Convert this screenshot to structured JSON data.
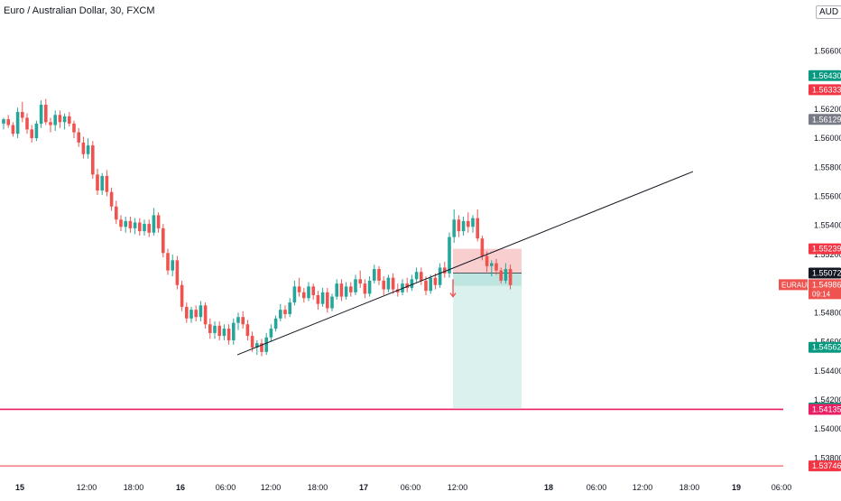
{
  "header": {
    "title": "Euro / Australian Dollar, 30, FXCM",
    "currency": "AUD"
  },
  "colors": {
    "up": "#26a69a",
    "down": "#ef5350",
    "trendline": "#131722",
    "risk_zone": "#f7c5c5",
    "reward_zone": "#d9f0ec",
    "hline": "#e91e63"
  },
  "chart_data": {
    "type": "candlestick",
    "title": "Euro / Australian Dollar, 30, FXCM",
    "ylim": [
      1.5366,
      1.5695
    ],
    "y_ticks": [
      "1.56600",
      "1.56200",
      "1.56000",
      "1.55800",
      "1.55600",
      "1.55400",
      "1.55200",
      "1.54800",
      "1.54600",
      "1.54400",
      "1.54200",
      "1.54000",
      "1.53800"
    ],
    "x_ticks": [
      "15",
      "12:00",
      "18:00",
      "16",
      "06:00",
      "12:00",
      "18:00",
      "17",
      "06:00",
      "12:00",
      "18",
      "06:00",
      "12:00",
      "18:00",
      "19",
      "06:00"
    ],
    "price_labels": [
      {
        "text": "1.56430",
        "value": 1.5643,
        "color": "#089981"
      },
      {
        "text": "1.56333",
        "value": 1.56333,
        "color": "#f23645"
      },
      {
        "text": "1.56129",
        "value": 1.56129,
        "color": "#787b86"
      },
      {
        "text": "1.55239",
        "value": 1.55239,
        "color": "#f23645"
      },
      {
        "text": "1.55072",
        "value": 1.55072,
        "color": "#131722"
      },
      {
        "text": "1.54562",
        "value": 1.54562,
        "color": "#089981"
      },
      {
        "text": "1.54144",
        "value": 1.54144,
        "color": "#089981"
      },
      {
        "text": "1.54135",
        "value": 1.54135,
        "color": "#e91e63"
      },
      {
        "text": "1.53746",
        "value": 1.53746,
        "color": "#f23645"
      }
    ],
    "current_price": {
      "symbol": "EURAUD",
      "price": "1.54986",
      "countdown": "09:14",
      "value": 1.54986
    },
    "hlines": [
      1.54135,
      1.53746
    ],
    "trendline": {
      "start": {
        "bar": 0.0,
        "price": 1.5451
      },
      "end": {
        "bar": 0.0,
        "price": 1.5577
      }
    },
    "position": {
      "type": "short",
      "entry": 1.55072,
      "stop": 1.55239,
      "target": 1.54144
    },
    "candles": [
      [
        1.561,
        1.5614,
        1.5606,
        1.5613
      ],
      [
        1.5613,
        1.5616,
        1.5607,
        1.5609
      ],
      [
        1.5609,
        1.5611,
        1.5601,
        1.5603
      ],
      [
        1.5603,
        1.5621,
        1.56,
        1.5618
      ],
      [
        1.5618,
        1.5625,
        1.5611,
        1.5614
      ],
      [
        1.5614,
        1.5617,
        1.5603,
        1.5606
      ],
      [
        1.5606,
        1.5609,
        1.5597,
        1.56
      ],
      [
        1.56,
        1.5612,
        1.5598,
        1.561
      ],
      [
        1.561,
        1.5626,
        1.5607,
        1.5623
      ],
      [
        1.5623,
        1.5627,
        1.5609,
        1.5611
      ],
      [
        1.5611,
        1.5614,
        1.5604,
        1.5609
      ],
      [
        1.5609,
        1.5619,
        1.5605,
        1.5616
      ],
      [
        1.5616,
        1.5619,
        1.5607,
        1.5611
      ],
      [
        1.5611,
        1.5617,
        1.5606,
        1.5615
      ],
      [
        1.5615,
        1.5618,
        1.5608,
        1.561
      ],
      [
        1.561,
        1.5612,
        1.56,
        1.5604
      ],
      [
        1.5604,
        1.5607,
        1.5594,
        1.5597
      ],
      [
        1.5597,
        1.5601,
        1.5586,
        1.5589
      ],
      [
        1.5589,
        1.56,
        1.5586,
        1.5595
      ],
      [
        1.5595,
        1.5598,
        1.5572,
        1.5575
      ],
      [
        1.5575,
        1.5579,
        1.5561,
        1.5564
      ],
      [
        1.5564,
        1.5576,
        1.5561,
        1.5574
      ],
      [
        1.5574,
        1.5578,
        1.556,
        1.5563
      ],
      [
        1.5563,
        1.5566,
        1.555,
        1.5553
      ],
      [
        1.5553,
        1.5557,
        1.5541,
        1.5544
      ],
      [
        1.5544,
        1.5547,
        1.5536,
        1.5539
      ],
      [
        1.5539,
        1.5546,
        1.5535,
        1.5543
      ],
      [
        1.5543,
        1.5546,
        1.5535,
        1.5538
      ],
      [
        1.5538,
        1.5545,
        1.5534,
        1.5542
      ],
      [
        1.5542,
        1.5545,
        1.5533,
        1.5536
      ],
      [
        1.5536,
        1.5544,
        1.5533,
        1.5541
      ],
      [
        1.5541,
        1.5544,
        1.5532,
        1.5535
      ],
      [
        1.5535,
        1.5552,
        1.5533,
        1.5547
      ],
      [
        1.5547,
        1.5549,
        1.5535,
        1.5538
      ],
      [
        1.5538,
        1.5541,
        1.5518,
        1.5521
      ],
      [
        1.5521,
        1.5524,
        1.5506,
        1.5509
      ],
      [
        1.5509,
        1.552,
        1.5505,
        1.5516
      ],
      [
        1.5516,
        1.5519,
        1.5496,
        1.5499
      ],
      [
        1.5499,
        1.5502,
        1.5481,
        1.5484
      ],
      [
        1.5484,
        1.5487,
        1.5473,
        1.5476
      ],
      [
        1.5476,
        1.5484,
        1.5473,
        1.5482
      ],
      [
        1.5482,
        1.5485,
        1.5474,
        1.5477
      ],
      [
        1.5477,
        1.5488,
        1.5474,
        1.5485
      ],
      [
        1.5485,
        1.5487,
        1.5469,
        1.5472
      ],
      [
        1.5472,
        1.5476,
        1.5462,
        1.5466
      ],
      [
        1.5466,
        1.5474,
        1.5462,
        1.5471
      ],
      [
        1.5471,
        1.5474,
        1.5461,
        1.5464
      ],
      [
        1.5464,
        1.5472,
        1.5461,
        1.5469
      ],
      [
        1.5469,
        1.5472,
        1.5458,
        1.5461
      ],
      [
        1.5461,
        1.5476,
        1.5458,
        1.5473
      ],
      [
        1.5473,
        1.548,
        1.5468,
        1.5477
      ],
      [
        1.5477,
        1.5481,
        1.5469,
        1.5472
      ],
      [
        1.5472,
        1.5475,
        1.5461,
        1.5464
      ],
      [
        1.5464,
        1.5467,
        1.5453,
        1.5456
      ],
      [
        1.5456,
        1.5461,
        1.5451,
        1.5459
      ],
      [
        1.5459,
        1.5462,
        1.545,
        1.5453
      ],
      [
        1.5453,
        1.5466,
        1.5451,
        1.5463
      ],
      [
        1.5463,
        1.5472,
        1.546,
        1.5469
      ],
      [
        1.5469,
        1.5478,
        1.5467,
        1.5476
      ],
      [
        1.5476,
        1.5486,
        1.5474,
        1.5482
      ],
      [
        1.5482,
        1.5485,
        1.5476,
        1.5479
      ],
      [
        1.5479,
        1.549,
        1.5477,
        1.5487
      ],
      [
        1.5487,
        1.5502,
        1.5485,
        1.5498
      ],
      [
        1.5498,
        1.5504,
        1.5491,
        1.5494
      ],
      [
        1.5494,
        1.5497,
        1.5487,
        1.549
      ],
      [
        1.549,
        1.5501,
        1.5488,
        1.5498
      ],
      [
        1.5498,
        1.55,
        1.5489,
        1.5492
      ],
      [
        1.5492,
        1.5495,
        1.5482,
        1.5486
      ],
      [
        1.5486,
        1.5497,
        1.5484,
        1.5494
      ],
      [
        1.5494,
        1.5497,
        1.548,
        1.5483
      ],
      [
        1.5483,
        1.5493,
        1.5481,
        1.5491
      ],
      [
        1.5491,
        1.5503,
        1.5489,
        1.55
      ],
      [
        1.55,
        1.5503,
        1.5488,
        1.5491
      ],
      [
        1.5491,
        1.5501,
        1.5489,
        1.5498
      ],
      [
        1.5498,
        1.5501,
        1.5491,
        1.5494
      ],
      [
        1.5494,
        1.5506,
        1.5492,
        1.5503
      ],
      [
        1.5503,
        1.5509,
        1.5497,
        1.55
      ],
      [
        1.55,
        1.5503,
        1.549,
        1.5493
      ],
      [
        1.5493,
        1.5505,
        1.5491,
        1.5502
      ],
      [
        1.5502,
        1.5513,
        1.55,
        1.551
      ],
      [
        1.551,
        1.5512,
        1.5499,
        1.5502
      ],
      [
        1.5502,
        1.5505,
        1.5492,
        1.5496
      ],
      [
        1.5496,
        1.5506,
        1.5494,
        1.5504
      ],
      [
        1.5504,
        1.5507,
        1.5493,
        1.5496
      ],
      [
        1.5496,
        1.55,
        1.5491,
        1.5494
      ],
      [
        1.5494,
        1.5503,
        1.5492,
        1.55
      ],
      [
        1.55,
        1.5504,
        1.5494,
        1.5497
      ],
      [
        1.5497,
        1.5506,
        1.5495,
        1.5503
      ],
      [
        1.5503,
        1.5511,
        1.5501,
        1.5508
      ],
      [
        1.5508,
        1.5511,
        1.5499,
        1.5502
      ],
      [
        1.5502,
        1.5505,
        1.5492,
        1.5495
      ],
      [
        1.5495,
        1.5506,
        1.5493,
        1.5504
      ],
      [
        1.5504,
        1.5507,
        1.5496,
        1.5499
      ],
      [
        1.5499,
        1.5514,
        1.5497,
        1.5511
      ],
      [
        1.5511,
        1.5515,
        1.5504,
        1.5507
      ],
      [
        1.5507,
        1.5535,
        1.5504,
        1.5532
      ],
      [
        1.5532,
        1.5551,
        1.5528,
        1.5544
      ],
      [
        1.5544,
        1.5547,
        1.5532,
        1.5536
      ],
      [
        1.5536,
        1.5546,
        1.5533,
        1.5543
      ],
      [
        1.5543,
        1.5549,
        1.5535,
        1.5539
      ],
      [
        1.5539,
        1.5547,
        1.5535,
        1.5545
      ],
      [
        1.5545,
        1.5551,
        1.5529,
        1.5531
      ],
      [
        1.5531,
        1.5533,
        1.5516,
        1.5519
      ],
      [
        1.5519,
        1.5522,
        1.5508,
        1.5512
      ],
      [
        1.5512,
        1.5516,
        1.5505,
        1.5514
      ],
      [
        1.5514,
        1.5517,
        1.5506,
        1.5509
      ],
      [
        1.5509,
        1.5511,
        1.55,
        1.5502
      ],
      [
        1.5502,
        1.5514,
        1.55,
        1.551
      ],
      [
        1.551,
        1.5513,
        1.5496,
        1.5499
      ]
    ]
  }
}
